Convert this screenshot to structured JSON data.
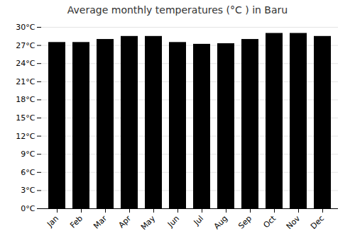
{
  "chart_data": {
    "type": "bar",
    "title": "Average monthly temperatures (°C ) in Baru",
    "categories": [
      "Jan",
      "Feb",
      "Mar",
      "Apr",
      "May",
      "Jun",
      "Jul",
      "Aug",
      "Sep",
      "Oct",
      "Nov",
      "Dec"
    ],
    "values": [
      27.5,
      27.5,
      28.0,
      28.5,
      28.5,
      27.5,
      27.2,
      27.3,
      28.0,
      29.0,
      29.0,
      28.5
    ],
    "ylim": [
      0,
      30
    ],
    "yticks": [
      {
        "value": 0,
        "label": "0°C"
      },
      {
        "value": 3,
        "label": "3°C"
      },
      {
        "value": 6,
        "label": "6°C"
      },
      {
        "value": 9,
        "label": "9°C"
      },
      {
        "value": 12,
        "label": "12°C"
      },
      {
        "value": 15,
        "label": "15°C"
      },
      {
        "value": 18,
        "label": "18°C"
      },
      {
        "value": 21,
        "label": "21°C"
      },
      {
        "value": 24,
        "label": "24°C"
      },
      {
        "value": 27,
        "label": "27°C"
      },
      {
        "value": 30,
        "label": "30°C"
      }
    ],
    "grid": true
  }
}
